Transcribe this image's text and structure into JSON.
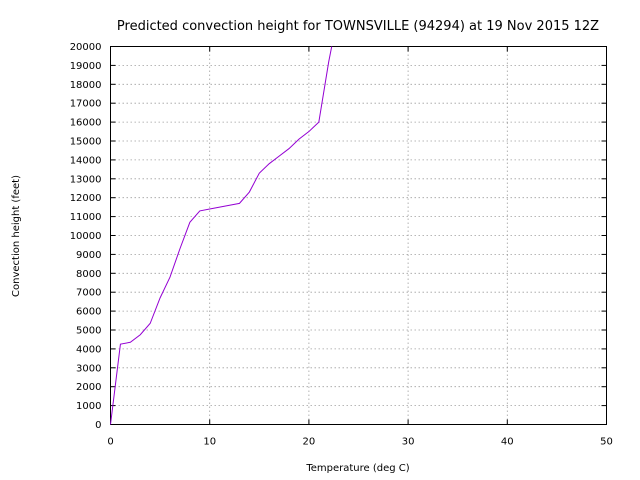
{
  "chart_data": {
    "type": "line",
    "title": "Predicted convection height for TOWNSVILLE (94294) at 19 Nov 2015 12Z",
    "xlabel": "Temperature (deg C)",
    "ylabel": "Convection height (feet)",
    "xlim": [
      0,
      50
    ],
    "ylim": [
      0,
      20000
    ],
    "xticks": [
      0,
      10,
      20,
      30,
      40,
      50
    ],
    "yticks": [
      0,
      1000,
      2000,
      3000,
      4000,
      5000,
      6000,
      7000,
      8000,
      9000,
      10000,
      11000,
      12000,
      13000,
      14000,
      15000,
      16000,
      17000,
      18000,
      19000,
      20000
    ],
    "grid": true,
    "series_color": "#9400d3",
    "series": [
      {
        "x": [
          0,
          1,
          2,
          3,
          4,
          5,
          6,
          7,
          8,
          9,
          10,
          11,
          12,
          13,
          14,
          15,
          16,
          17,
          18,
          19,
          20,
          21,
          21.5,
          22,
          22.3
        ],
        "y": [
          0,
          4250,
          4350,
          4750,
          5350,
          6700,
          7800,
          9300,
          10700,
          11300,
          11400,
          11500,
          11600,
          11700,
          12300,
          13300,
          13800,
          14200,
          14600,
          15100,
          15500,
          16000,
          17600,
          19200,
          20000
        ]
      }
    ]
  }
}
